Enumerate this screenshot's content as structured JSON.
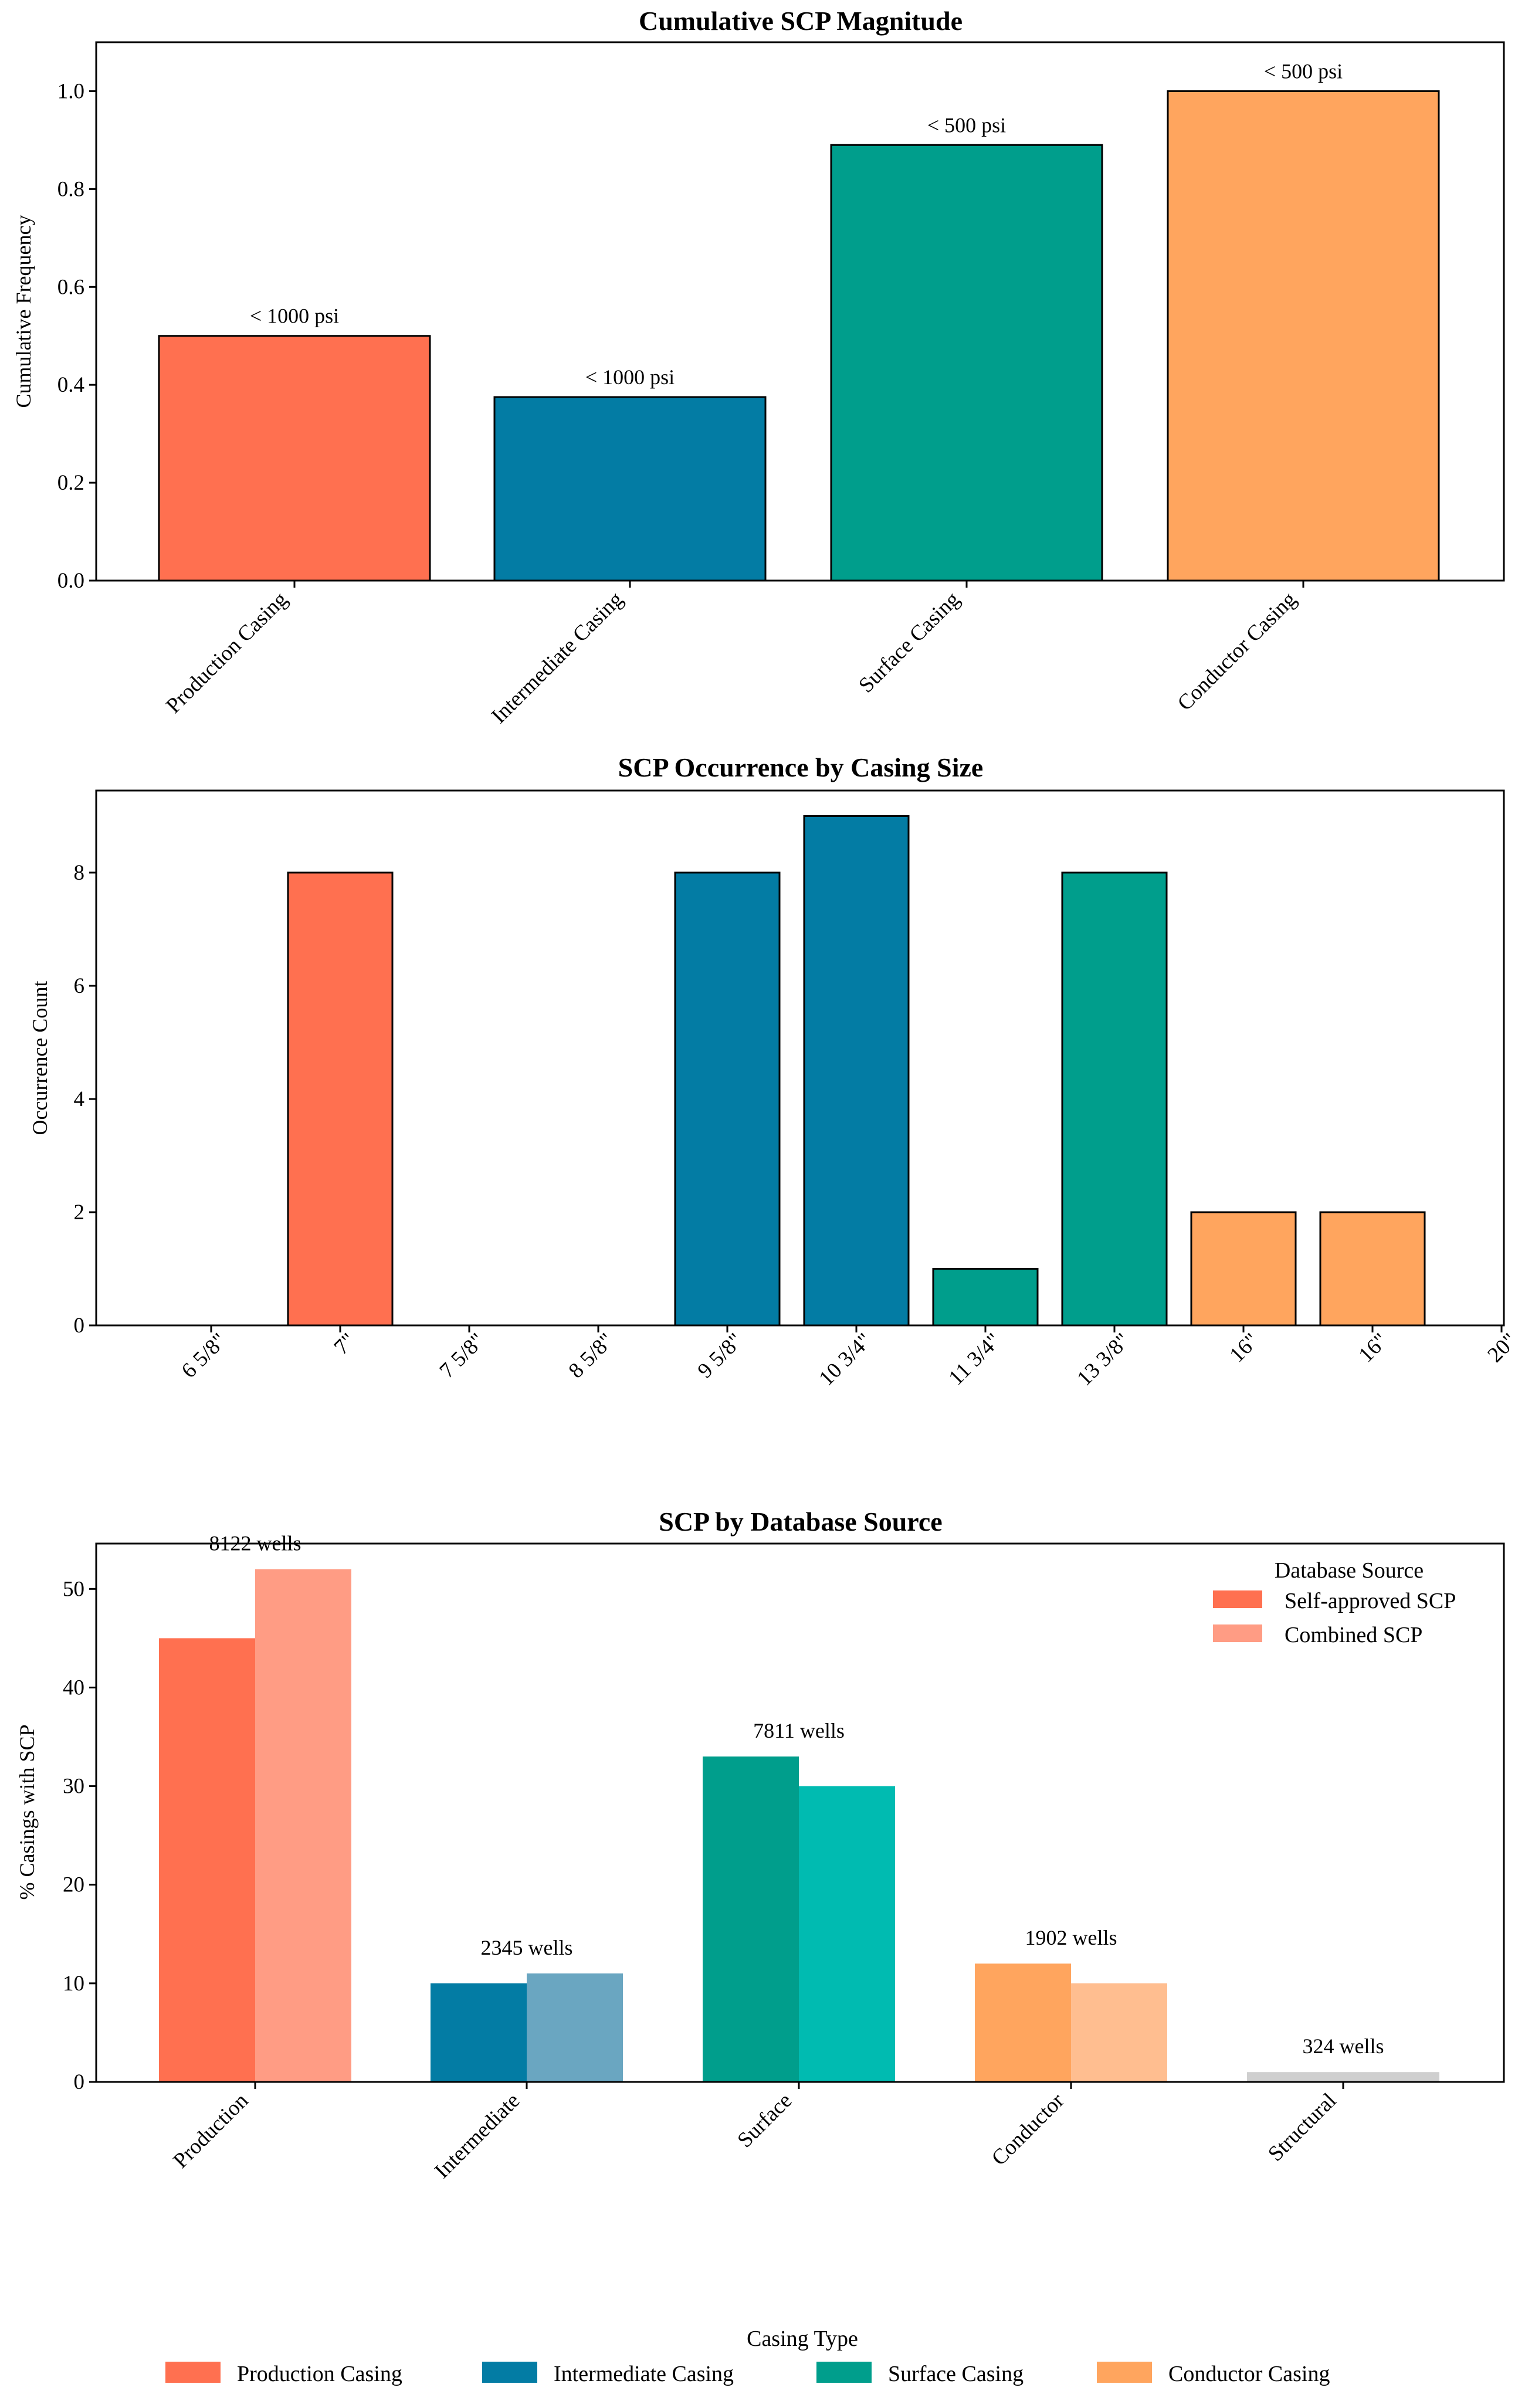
{
  "colors": {
    "production": "#FF7050",
    "intermediate": "#037CA4",
    "surface": "#009E8C",
    "conductor": "#FFA55E",
    "production_light": "#FF9C84",
    "intermediate_light": "#6AA6C1",
    "surface_light": "#00BBB1",
    "conductor_light": "#FFBE90",
    "structural": "#CFCFCF"
  },
  "chart_data": [
    {
      "type": "bar",
      "title": "Cumulative SCP Magnitude",
      "xlabel": "",
      "ylabel": "Cumulative Frequency",
      "ylim": [
        0,
        1.1
      ],
      "yticks": [
        "0.0",
        "0.2",
        "0.4",
        "0.6",
        "0.8",
        "1.0"
      ],
      "categories": [
        "Production Casing",
        "Intermediate Casing",
        "Surface Casing",
        "Conductor Casing"
      ],
      "values": [
        0.5,
        0.375,
        0.89,
        1.0
      ],
      "bar_labels": [
        "< 1000 psi",
        "< 1000 psi",
        "< 500 psi",
        "< 500 psi"
      ],
      "color_keys": [
        "production",
        "intermediate",
        "surface",
        "conductor"
      ]
    },
    {
      "type": "bar",
      "title": "SCP Occurrence by Casing Size",
      "xlabel": "",
      "ylabel": "Occurrence Count",
      "ylim": [
        0,
        9.45
      ],
      "yticks": [
        "0",
        "2",
        "4",
        "6",
        "8"
      ],
      "categories": [
        "6 5/8\"",
        "7\"",
        "7 5/8\"",
        "8 5/8\"",
        "9 5/8\"",
        "10 3/4\"",
        "11 3/4\"",
        "13 3/8\"",
        "16\"",
        "16\"",
        "20\""
      ],
      "values": [
        0,
        8,
        0,
        0,
        8,
        9,
        1,
        8,
        2,
        2,
        0
      ],
      "color_keys": [
        "production",
        "production",
        "production",
        "production",
        "intermediate",
        "intermediate",
        "surface",
        "surface",
        "conductor",
        "conductor",
        "conductor"
      ]
    },
    {
      "type": "bar",
      "title": "SCP by Database Source",
      "xlabel": "",
      "ylabel": "% Casings with SCP",
      "ylim": [
        0,
        54.6
      ],
      "yticks": [
        "0",
        "10",
        "20",
        "30",
        "40",
        "50"
      ],
      "categories": [
        "Production",
        "Intermediate",
        "Surface",
        "Conductor",
        "Structural"
      ],
      "series": [
        {
          "name": "Self-approved SCP",
          "values": [
            45,
            10,
            33,
            12,
            1
          ]
        },
        {
          "name": "Combined SCP",
          "values": [
            52,
            11,
            30,
            10,
            1
          ]
        }
      ],
      "well_labels": [
        "8122 wells",
        "2345 wells",
        "7811 wells",
        "1902 wells",
        "324 wells"
      ],
      "legend_title": "Database Source",
      "legend_position": "top-right",
      "color_keys_self": [
        "production",
        "intermediate",
        "surface",
        "conductor",
        "structural"
      ],
      "color_keys_combined": [
        "production_light",
        "intermediate_light",
        "surface_light",
        "conductor_light",
        "structural"
      ]
    }
  ],
  "figure_legend": {
    "title": "Casing Type",
    "items": [
      {
        "label": "Production Casing",
        "color_key": "production"
      },
      {
        "label": "Intermediate Casing",
        "color_key": "intermediate"
      },
      {
        "label": "Surface Casing",
        "color_key": "surface"
      },
      {
        "label": "Conductor Casing",
        "color_key": "conductor"
      }
    ]
  }
}
